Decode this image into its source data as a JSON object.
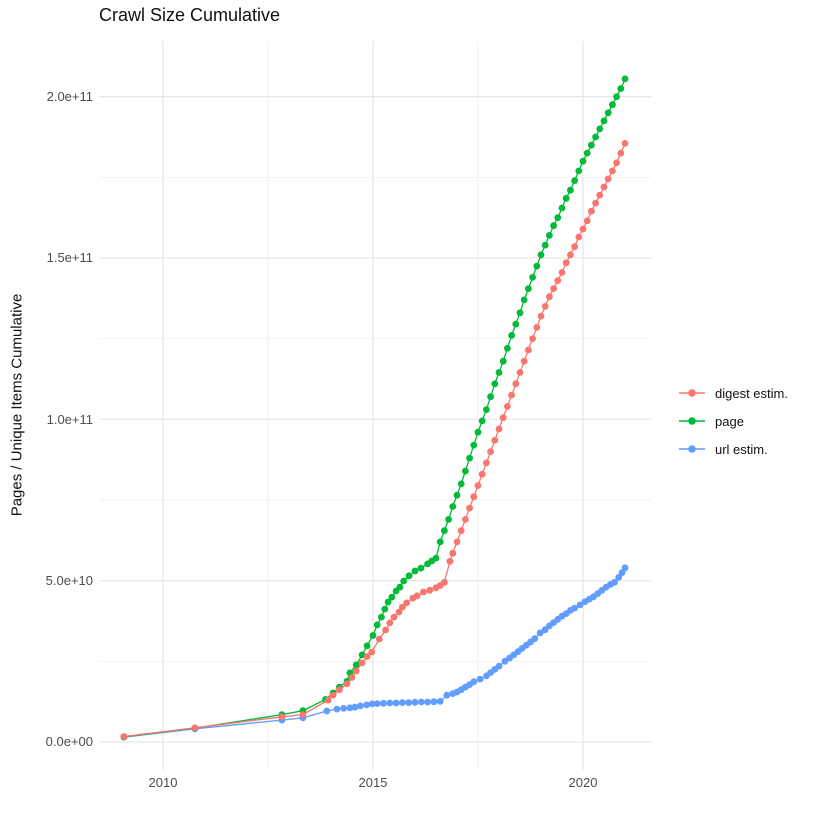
{
  "title": "Crawl Size Cumulative",
  "axes": {
    "y_title": "Pages / Unique Items Cumulative",
    "x_title": "",
    "y_tick_labels": [
      "0.0e+00",
      "5.0e+10",
      "1.0e+11",
      "1.5e+11",
      "2.0e+11"
    ],
    "x_tick_labels": [
      "2010",
      "2015",
      "2020"
    ]
  },
  "legend": {
    "items": [
      {
        "label": "digest estim.",
        "color": "#F8766D"
      },
      {
        "label": "page",
        "color": "#00BA38"
      },
      {
        "label": "url estim.",
        "color": "#619CFF"
      }
    ]
  },
  "chart_data": {
    "type": "line",
    "title": "Crawl Size Cumulative",
    "xlabel": "",
    "ylabel": "Pages / Unique Items Cumulative",
    "legend_position": "right",
    "grid": "major-and-minor",
    "x_range": [
      2008.48,
      2021.62
    ],
    "y_range": [
      -8700000000.0,
      217000000000.0
    ],
    "x_ticks": [
      2010,
      2015,
      2020
    ],
    "x_minor_ticks": [
      2012.5,
      2017.5
    ],
    "y_ticks": [
      0,
      50000000000.0,
      100000000000.0,
      150000000000.0,
      200000000000.0
    ],
    "y_minor_ticks": [
      25000000000.0,
      75000000000.0,
      125000000000.0,
      175000000000.0
    ],
    "series": [
      {
        "name": "digest estim.",
        "color": "#F8766D",
        "points": [
          [
            2009.07,
            1700000000.0
          ],
          [
            2010.76,
            4400000000.0
          ],
          [
            2012.83,
            7800000000.0
          ],
          [
            2013.33,
            8500000000.0
          ],
          [
            2013.93,
            13000000000.0
          ],
          [
            2014.05,
            14500000000.0
          ],
          [
            2014.2,
            16200000000.0
          ],
          [
            2014.38,
            18000000000.0
          ],
          [
            2014.5,
            20000000000.0
          ],
          [
            2014.6,
            22000000000.0
          ],
          [
            2014.74,
            24500000000.0
          ],
          [
            2014.86,
            26500000000.0
          ],
          [
            2014.97,
            27900000000.0
          ],
          [
            2015.15,
            31900000000.0
          ],
          [
            2015.3,
            34700000000.0
          ],
          [
            2015.4,
            36900000000.0
          ],
          [
            2015.5,
            38700000000.0
          ],
          [
            2015.62,
            40300000000.0
          ],
          [
            2015.7,
            41800000000.0
          ],
          [
            2015.8,
            43100000000.0
          ],
          [
            2015.95,
            44600000000.0
          ],
          [
            2016.05,
            45300000000.0
          ],
          [
            2016.2,
            46500000000.0
          ],
          [
            2016.35,
            47000000000.0
          ],
          [
            2016.5,
            47800000000.0
          ],
          [
            2016.6,
            48500000000.0
          ],
          [
            2016.7,
            49500000000.0
          ],
          [
            2016.83,
            56000000000.0
          ],
          [
            2016.9,
            58500000000.0
          ],
          [
            2017.0,
            62000000000.0
          ],
          [
            2017.1,
            65500000000.0
          ],
          [
            2017.2,
            69000000000.0
          ],
          [
            2017.3,
            72500000000.0
          ],
          [
            2017.4,
            76000000000.0
          ],
          [
            2017.5,
            79500000000.0
          ],
          [
            2017.6,
            83000000000.0
          ],
          [
            2017.7,
            86500000000.0
          ],
          [
            2017.8,
            90000000000.0
          ],
          [
            2017.9,
            93500000000.0
          ],
          [
            2018.0,
            97000000000.0
          ],
          [
            2018.1,
            100500000000.0
          ],
          [
            2018.2,
            104000000000.0
          ],
          [
            2018.3,
            107500000000.0
          ],
          [
            2018.4,
            111000000000.0
          ],
          [
            2018.5,
            114500000000.0
          ],
          [
            2018.6,
            118000000000.0
          ],
          [
            2018.7,
            121500000000.0
          ],
          [
            2018.8,
            125000000000.0
          ],
          [
            2018.9,
            128500000000.0
          ],
          [
            2019.0,
            132000000000.0
          ],
          [
            2019.1,
            135000000000.0
          ],
          [
            2019.2,
            138000000000.0
          ],
          [
            2019.3,
            140500000000.0
          ],
          [
            2019.4,
            143000000000.0
          ],
          [
            2019.5,
            145500000000.0
          ],
          [
            2019.6,
            148500000000.0
          ],
          [
            2019.7,
            151000000000.0
          ],
          [
            2019.8,
            153500000000.0
          ],
          [
            2019.9,
            156500000000.0
          ],
          [
            2020.0,
            159000000000.0
          ],
          [
            2020.1,
            161500000000.0
          ],
          [
            2020.2,
            164500000000.0
          ],
          [
            2020.3,
            167000000000.0
          ],
          [
            2020.4,
            169500000000.0
          ],
          [
            2020.5,
            172000000000.0
          ],
          [
            2020.6,
            174500000000.0
          ],
          [
            2020.7,
            177000000000.0
          ],
          [
            2020.8,
            179500000000.0
          ],
          [
            2020.9,
            182500000000.0
          ],
          [
            2021.0,
            185500000000.0
          ]
        ]
      },
      {
        "name": "page",
        "color": "#00BA38",
        "points": [
          [
            2009.07,
            1600000000.0
          ],
          [
            2010.76,
            4300000000.0
          ],
          [
            2012.83,
            8500000000.0
          ],
          [
            2013.33,
            9700000000.0
          ],
          [
            2013.87,
            13200000000.0
          ],
          [
            2014.05,
            15200000000.0
          ],
          [
            2014.2,
            17000000000.0
          ],
          [
            2014.38,
            18800000000.0
          ],
          [
            2014.45,
            21400000000.0
          ],
          [
            2014.6,
            23900000000.0
          ],
          [
            2014.74,
            27000000000.0
          ],
          [
            2014.86,
            29800000000.0
          ],
          [
            2015.0,
            33000000000.0
          ],
          [
            2015.1,
            36300000000.0
          ],
          [
            2015.2,
            38700000000.0
          ],
          [
            2015.28,
            41200000000.0
          ],
          [
            2015.36,
            43400000000.0
          ],
          [
            2015.45,
            44900000000.0
          ],
          [
            2015.55,
            46800000000.0
          ],
          [
            2015.64,
            48000000000.0
          ],
          [
            2015.73,
            49900000000.0
          ],
          [
            2015.86,
            51500000000.0
          ],
          [
            2016.0,
            53000000000.0
          ],
          [
            2016.14,
            53900000000.0
          ],
          [
            2016.3,
            55200000000.0
          ],
          [
            2016.4,
            56100000000.0
          ],
          [
            2016.5,
            57000000000.0
          ],
          [
            2016.6,
            62000000000.0
          ],
          [
            2016.7,
            65500000000.0
          ],
          [
            2016.8,
            69000000000.0
          ],
          [
            2016.9,
            73000000000.0
          ],
          [
            2017.0,
            76500000000.0
          ],
          [
            2017.1,
            80000000000.0
          ],
          [
            2017.2,
            84000000000.0
          ],
          [
            2017.3,
            88000000000.0
          ],
          [
            2017.4,
            92000000000.0
          ],
          [
            2017.5,
            96000000000.0
          ],
          [
            2017.6,
            99500000000.0
          ],
          [
            2017.7,
            103000000000.0
          ],
          [
            2017.8,
            107000000000.0
          ],
          [
            2017.9,
            111000000000.0
          ],
          [
            2018.0,
            114500000000.0
          ],
          [
            2018.1,
            118000000000.0
          ],
          [
            2018.2,
            122000000000.0
          ],
          [
            2018.3,
            126000000000.0
          ],
          [
            2018.4,
            129500000000.0
          ],
          [
            2018.5,
            133000000000.0
          ],
          [
            2018.6,
            137000000000.0
          ],
          [
            2018.7,
            140500000000.0
          ],
          [
            2018.8,
            144000000000.0
          ],
          [
            2018.9,
            147500000000.0
          ],
          [
            2019.0,
            151000000000.0
          ],
          [
            2019.1,
            154000000000.0
          ],
          [
            2019.2,
            157000000000.0
          ],
          [
            2019.3,
            160000000000.0
          ],
          [
            2019.4,
            162500000000.0
          ],
          [
            2019.5,
            165500000000.0
          ],
          [
            2019.6,
            168500000000.0
          ],
          [
            2019.7,
            171000000000.0
          ],
          [
            2019.8,
            174000000000.0
          ],
          [
            2019.9,
            177000000000.0
          ],
          [
            2020.0,
            180000000000.0
          ],
          [
            2020.1,
            182500000000.0
          ],
          [
            2020.2,
            185000000000.0
          ],
          [
            2020.3,
            187500000000.0
          ],
          [
            2020.4,
            190000000000.0
          ],
          [
            2020.5,
            192500000000.0
          ],
          [
            2020.6,
            195000000000.0
          ],
          [
            2020.7,
            197500000000.0
          ],
          [
            2020.8,
            200000000000.0
          ],
          [
            2020.9,
            202500000000.0
          ],
          [
            2021.0,
            205500000000.0
          ]
        ]
      },
      {
        "name": "url estim.",
        "color": "#619CFF",
        "points": [
          [
            2009.07,
            1500000000.0
          ],
          [
            2010.76,
            4100000000.0
          ],
          [
            2012.83,
            6800000000.0
          ],
          [
            2013.33,
            7500000000.0
          ],
          [
            2013.9,
            9600000000.0
          ],
          [
            2014.14,
            10200000000.0
          ],
          [
            2014.3,
            10400000000.0
          ],
          [
            2014.45,
            10600000000.0
          ],
          [
            2014.57,
            10800000000.0
          ],
          [
            2014.7,
            11200000000.0
          ],
          [
            2014.85,
            11500000000.0
          ],
          [
            2014.98,
            11800000000.0
          ],
          [
            2015.1,
            11900000000.0
          ],
          [
            2015.25,
            12000000000.0
          ],
          [
            2015.4,
            12100000000.0
          ],
          [
            2015.55,
            12100000000.0
          ],
          [
            2015.7,
            12200000000.0
          ],
          [
            2015.85,
            12200000000.0
          ],
          [
            2016.0,
            12300000000.0
          ],
          [
            2016.15,
            12400000000.0
          ],
          [
            2016.3,
            12400000000.0
          ],
          [
            2016.45,
            12500000000.0
          ],
          [
            2016.6,
            12600000000.0
          ],
          [
            2016.76,
            14500000000.0
          ],
          [
            2016.9,
            15000000000.0
          ],
          [
            2017.0,
            15500000000.0
          ],
          [
            2017.1,
            16200000000.0
          ],
          [
            2017.2,
            17000000000.0
          ],
          [
            2017.3,
            17800000000.0
          ],
          [
            2017.4,
            18700000000.0
          ],
          [
            2017.55,
            19500000000.0
          ],
          [
            2017.7,
            20500000000.0
          ],
          [
            2017.8,
            21500000000.0
          ],
          [
            2017.9,
            22500000000.0
          ],
          [
            2018.0,
            23500000000.0
          ],
          [
            2018.14,
            25000000000.0
          ],
          [
            2018.25,
            26000000000.0
          ],
          [
            2018.35,
            27000000000.0
          ],
          [
            2018.45,
            28000000000.0
          ],
          [
            2018.55,
            29000000000.0
          ],
          [
            2018.65,
            30000000000.0
          ],
          [
            2018.75,
            31000000000.0
          ],
          [
            2018.85,
            32000000000.0
          ],
          [
            2018.98,
            33800000000.0
          ],
          [
            2019.1,
            34800000000.0
          ],
          [
            2019.2,
            36000000000.0
          ],
          [
            2019.3,
            37000000000.0
          ],
          [
            2019.4,
            38000000000.0
          ],
          [
            2019.5,
            39000000000.0
          ],
          [
            2019.6,
            39800000000.0
          ],
          [
            2019.7,
            40800000000.0
          ],
          [
            2019.8,
            41500000000.0
          ],
          [
            2019.93,
            42500000000.0
          ],
          [
            2020.05,
            43500000000.0
          ],
          [
            2020.15,
            44300000000.0
          ],
          [
            2020.25,
            45000000000.0
          ],
          [
            2020.35,
            46000000000.0
          ],
          [
            2020.45,
            47000000000.0
          ],
          [
            2020.55,
            48000000000.0
          ],
          [
            2020.65,
            48800000000.0
          ],
          [
            2020.75,
            49500000000.0
          ],
          [
            2020.85,
            51000000000.0
          ],
          [
            2020.93,
            52500000000.0
          ],
          [
            2021.0,
            54000000000.0
          ]
        ]
      }
    ]
  }
}
